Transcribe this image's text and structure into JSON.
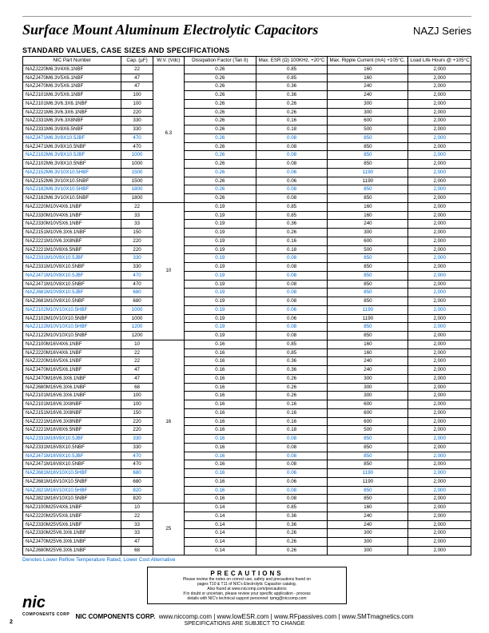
{
  "title": "Surface Mount Aluminum Electrolytic Capacitors",
  "series": "NAZJ Series",
  "subtitle": "STANDARD VALUES, CASE SIZES AND SPECIFICATIONS",
  "columns": [
    "NIC Part Number",
    "Cap. (µF)",
    "W.V. (Vdc)",
    "Dissipation Factor (Tan δ)",
    "Max. ESR (Ω) 100KHz, +20°C",
    "Max. Ripple Current (mA) +105°C, 100KHz",
    "Load Life Hours @ +105°C"
  ],
  "groups": [
    {
      "wv": "6.3",
      "rows": [
        {
          "pn": "NAZJ220M6.3V4X6.1NBF",
          "cap": "22",
          "df": "0.26",
          "esr": "0.85",
          "rc": "160",
          "ll": "2,000",
          "blue": false
        },
        {
          "pn": "NAZJ470M6.3V5X6.1NBF",
          "cap": "47",
          "df": "0.26",
          "esr": "0.85",
          "rc": "160",
          "ll": "2,000",
          "blue": false
        },
        {
          "pn": "NAZJ470M6.3V5X6.1NBF",
          "cap": "47",
          "df": "0.26",
          "esr": "0.36",
          "rc": "240",
          "ll": "2,000",
          "blue": false
        },
        {
          "pn": "NAZJ101M6.3V5X6.1NBF",
          "cap": "100",
          "df": "0.26",
          "esr": "0.36",
          "rc": "240",
          "ll": "2,000",
          "blue": false
        },
        {
          "pn": "NAZJ101M6.3V6.3X6.1NBF",
          "cap": "100",
          "df": "0.26",
          "esr": "0.26",
          "rc": "300",
          "ll": "2,000",
          "blue": false
        },
        {
          "pn": "NAZJ221M6.3V6.3X6.1NBF",
          "cap": "220",
          "df": "0.26",
          "esr": "0.26",
          "rc": "300",
          "ll": "2,000",
          "blue": false
        },
        {
          "pn": "NAZJ331M6.3V6.3X8NBF",
          "cap": "330",
          "df": "0.26",
          "esr": "0.16",
          "rc": "600",
          "ll": "2,000",
          "blue": false
        },
        {
          "pn": "NAZJ331M6.3V8X6.5NBF",
          "cap": "330",
          "df": "0.26",
          "esr": "0.18",
          "rc": "500",
          "ll": "2,000",
          "blue": false
        },
        {
          "pn": "NAZJ471M6.3V8X10.5JBF",
          "cap": "470",
          "df": "0.26",
          "esr": "0.08",
          "rc": "850",
          "ll": "2,000",
          "blue": true
        },
        {
          "pn": "NAZJ471M6.3V8X10.5NBF",
          "cap": "470",
          "df": "0.26",
          "esr": "0.08",
          "rc": "850",
          "ll": "2,000",
          "blue": false
        },
        {
          "pn": "NAZJ102M6.3V8X10.5JBF",
          "cap": "1000",
          "df": "0.26",
          "esr": "0.08",
          "rc": "850",
          "ll": "2,000",
          "blue": true
        },
        {
          "pn": "NAZJ102M6.3V8X10.5NBF",
          "cap": "1000",
          "df": "0.26",
          "esr": "0.08",
          "rc": "850",
          "ll": "2,000",
          "blue": false
        },
        {
          "pn": "NAZJ152M6.3V10X10.5HBF",
          "cap": "1500",
          "df": "0.26",
          "esr": "0.06",
          "rc": "1190",
          "ll": "2,000",
          "blue": true
        },
        {
          "pn": "NAZJ152M6.3V10X10.5NBF",
          "cap": "1500",
          "df": "0.26",
          "esr": "0.06",
          "rc": "1190",
          "ll": "2,000",
          "blue": false
        },
        {
          "pn": "NAZJ182M6.3V10X10.5HBF",
          "cap": "1800",
          "df": "0.26",
          "esr": "0.08",
          "rc": "850",
          "ll": "2,000",
          "blue": true
        },
        {
          "pn": "NAZJ182M6.3V10X10.5NBF",
          "cap": "1800",
          "df": "0.26",
          "esr": "0.08",
          "rc": "850",
          "ll": "2,000",
          "blue": false
        }
      ]
    },
    {
      "wv": "10",
      "rows": [
        {
          "pn": "NAZJ220M10V4X6.1NBF",
          "cap": "22",
          "df": "0.19",
          "esr": "0.85",
          "rc": "160",
          "ll": "2,000",
          "blue": false
        },
        {
          "pn": "NAZJ330M10V4X6.1NBF",
          "cap": "33",
          "df": "0.19",
          "esr": "0.85",
          "rc": "160",
          "ll": "2,000",
          "blue": false
        },
        {
          "pn": "NAZJ330M10V5X6.1NBF",
          "cap": "33",
          "df": "0.19",
          "esr": "0.36",
          "rc": "240",
          "ll": "2,000",
          "blue": false
        },
        {
          "pn": "NAZJ151M10V6.3X6.1NBF",
          "cap": "150",
          "df": "0.19",
          "esr": "0.26",
          "rc": "300",
          "ll": "2,000",
          "blue": false
        },
        {
          "pn": "NAZJ221M10V6.3X8NBF",
          "cap": "220",
          "df": "0.19",
          "esr": "0.16",
          "rc": "600",
          "ll": "2,000",
          "blue": false
        },
        {
          "pn": "NAZJ221M10V8X6.5NBF",
          "cap": "220",
          "df": "0.19",
          "esr": "0.18",
          "rc": "500",
          "ll": "2,000",
          "blue": false
        },
        {
          "pn": "NAZJ331M10V8X10.5JBF",
          "cap": "330",
          "df": "0.19",
          "esr": "0.08",
          "rc": "850",
          "ll": "2,000",
          "blue": true
        },
        {
          "pn": "NAZJ331M10V8X10.5NBF",
          "cap": "330",
          "df": "0.19",
          "esr": "0.08",
          "rc": "850",
          "ll": "2,000",
          "blue": false
        },
        {
          "pn": "NAZJ471M10V8X10.5JBF",
          "cap": "470",
          "df": "0.19",
          "esr": "0.08",
          "rc": "850",
          "ll": "2,000",
          "blue": true
        },
        {
          "pn": "NAZJ471M10V8X10.5NBF",
          "cap": "470",
          "df": "0.19",
          "esr": "0.08",
          "rc": "850",
          "ll": "2,000",
          "blue": false
        },
        {
          "pn": "NAZJ681M10V8X10.5JBF",
          "cap": "680",
          "df": "0.19",
          "esr": "0.08",
          "rc": "850",
          "ll": "2,000",
          "blue": true
        },
        {
          "pn": "NAZJ681M10V8X10.5NBF",
          "cap": "680",
          "df": "0.19",
          "esr": "0.08",
          "rc": "850",
          "ll": "2,000",
          "blue": false
        },
        {
          "pn": "NAZJ102M10V10X10.5HBF",
          "cap": "1000",
          "df": "0.19",
          "esr": "0.06",
          "rc": "1190",
          "ll": "2,000",
          "blue": true
        },
        {
          "pn": "NAZJ102M10V10X10.5NBF",
          "cap": "1000",
          "df": "0.19",
          "esr": "0.06",
          "rc": "1190",
          "ll": "2,000",
          "blue": false
        },
        {
          "pn": "NAZJ122M10V10X10.5HBF",
          "cap": "1200",
          "df": "0.19",
          "esr": "0.08",
          "rc": "850",
          "ll": "2,000",
          "blue": true
        },
        {
          "pn": "NAZJ122M10V10X10.5NBF",
          "cap": "1200",
          "df": "0.19",
          "esr": "0.08",
          "rc": "850",
          "ll": "2,000",
          "blue": false
        }
      ]
    },
    {
      "wv": "16",
      "rows": [
        {
          "pn": "NAZJ100M16V4X6.1NBF",
          "cap": "10",
          "df": "0.16",
          "esr": "0.85",
          "rc": "160",
          "ll": "2,000",
          "blue": false
        },
        {
          "pn": "NAZJ220M16V4X6.1NBF",
          "cap": "22",
          "df": "0.16",
          "esr": "0.85",
          "rc": "160",
          "ll": "2,000",
          "blue": false
        },
        {
          "pn": "NAZJ220M16V5X6.1NBF",
          "cap": "22",
          "df": "0.16",
          "esr": "0.36",
          "rc": "240",
          "ll": "2,000",
          "blue": false
        },
        {
          "pn": "NAZJ470M16V5X6.1NBF",
          "cap": "47",
          "df": "0.16",
          "esr": "0.36",
          "rc": "240",
          "ll": "2,000",
          "blue": false
        },
        {
          "pn": "NAZJ470M16V6.3X6.1NBF",
          "cap": "47",
          "df": "0.16",
          "esr": "0.26",
          "rc": "300",
          "ll": "2,000",
          "blue": false
        },
        {
          "pn": "NAZJ680M16V6.3X6.1NBF",
          "cap": "68",
          "df": "0.16",
          "esr": "0.26",
          "rc": "300",
          "ll": "2,000",
          "blue": false
        },
        {
          "pn": "NAZJ101M16V6.3X6.1NBF",
          "cap": "100",
          "df": "0.16",
          "esr": "0.26",
          "rc": "300",
          "ll": "2,000",
          "blue": false
        },
        {
          "pn": "NAZJ101M16V6.3X8NBF",
          "cap": "100",
          "df": "0.16",
          "esr": "0.16",
          "rc": "600",
          "ll": "2,000",
          "blue": false
        },
        {
          "pn": "NAZJ151M16V6.3X8NBF",
          "cap": "150",
          "df": "0.16",
          "esr": "0.16",
          "rc": "600",
          "ll": "2,000",
          "blue": false
        },
        {
          "pn": "NAZJ221M16V6.3X8NBF",
          "cap": "220",
          "df": "0.16",
          "esr": "0.16",
          "rc": "600",
          "ll": "2,000",
          "blue": false
        },
        {
          "pn": "NAZJ221M16V8X6.5NBF",
          "cap": "220",
          "df": "0.16",
          "esr": "0.18",
          "rc": "500",
          "ll": "2,000",
          "blue": false
        },
        {
          "pn": "NAZJ331M16V8X10.5JBF",
          "cap": "330",
          "df": "0.16",
          "esr": "0.08",
          "rc": "850",
          "ll": "2,000",
          "blue": true
        },
        {
          "pn": "NAZJ331M16V8X10.5NBF",
          "cap": "330",
          "df": "0.16",
          "esr": "0.08",
          "rc": "850",
          "ll": "2,000",
          "blue": false
        },
        {
          "pn": "NAZJ471M16V8X10.5JBF",
          "cap": "470",
          "df": "0.16",
          "esr": "0.08",
          "rc": "850",
          "ll": "2,000",
          "blue": true
        },
        {
          "pn": "NAZJ471M16V8X10.5NBF",
          "cap": "470",
          "df": "0.16",
          "esr": "0.08",
          "rc": "850",
          "ll": "2,000",
          "blue": false
        },
        {
          "pn": "NAZJ681M16V10X10.5HBF",
          "cap": "680",
          "df": "0.16",
          "esr": "0.06",
          "rc": "1190",
          "ll": "2,000",
          "blue": true
        },
        {
          "pn": "NAZJ681M16V10X10.5NBF",
          "cap": "680",
          "df": "0.16",
          "esr": "0.06",
          "rc": "1190",
          "ll": "2,000",
          "blue": false
        },
        {
          "pn": "NAZJ821M16V10X10.5HBF",
          "cap": "820",
          "df": "0.16",
          "esr": "0.08",
          "rc": "850",
          "ll": "2,000",
          "blue": true
        },
        {
          "pn": "NAZJ821M16V10X10.5NBF",
          "cap": "820",
          "df": "0.16",
          "esr": "0.08",
          "rc": "850",
          "ll": "2,000",
          "blue": false
        }
      ]
    },
    {
      "wv": "25",
      "rows": [
        {
          "pn": "NAZJ100M25V4X6.1NBF",
          "cap": "10",
          "df": "0.14",
          "esr": "0.85",
          "rc": "160",
          "ll": "2,000",
          "blue": false
        },
        {
          "pn": "NAZJ220M25V5X6.1NBF",
          "cap": "22",
          "df": "0.14",
          "esr": "0.36",
          "rc": "240",
          "ll": "2,000",
          "blue": false
        },
        {
          "pn": "NAZJ330M25V5X6.1NBF",
          "cap": "33",
          "df": "0.14",
          "esr": "0.36",
          "rc": "240",
          "ll": "2,000",
          "blue": false
        },
        {
          "pn": "NAZJ330M25V6.3X6.1NBF",
          "cap": "33",
          "df": "0.14",
          "esr": "0.26",
          "rc": "300",
          "ll": "2,000",
          "blue": false
        },
        {
          "pn": "NAZJ470M25V6.3X6.1NBF",
          "cap": "47",
          "df": "0.14",
          "esr": "0.26",
          "rc": "300",
          "ll": "2,000",
          "blue": false
        },
        {
          "pn": "NAZJ680M25V6.3X6.1NBF",
          "cap": "68",
          "df": "0.14",
          "esr": "0.26",
          "rc": "300",
          "ll": "2,000",
          "blue": false
        }
      ]
    }
  ],
  "footnote": "Denotes Lower Reflow Temperature Rated, Lower Cost Alternative",
  "precautions": {
    "title": "PRECAUTIONS",
    "lines": [
      "Please review the notes on correct use, safety and precautions found on",
      "pages T10 & T11 of NIC's Electrolytic Capacitor catalog.",
      "Also found at www.niccomp.com/precautions",
      "If in doubt or uncertain, please review your specific application - process",
      "details with NIC's technical support personnel: tpmg@niccomp.com"
    ]
  },
  "footer": {
    "corp": "NIC COMPONENTS CORP.",
    "sites": "www.niccomp.com | www.lowESR.com | www.RFpassives.com | www.SMTmagnetics.com",
    "change": "SPECIFICATIONS ARE SUBJECT TO CHANGE"
  },
  "logo": {
    "text": "nic",
    "sub": "COMPONENTS CORP"
  },
  "pagenum": "2"
}
